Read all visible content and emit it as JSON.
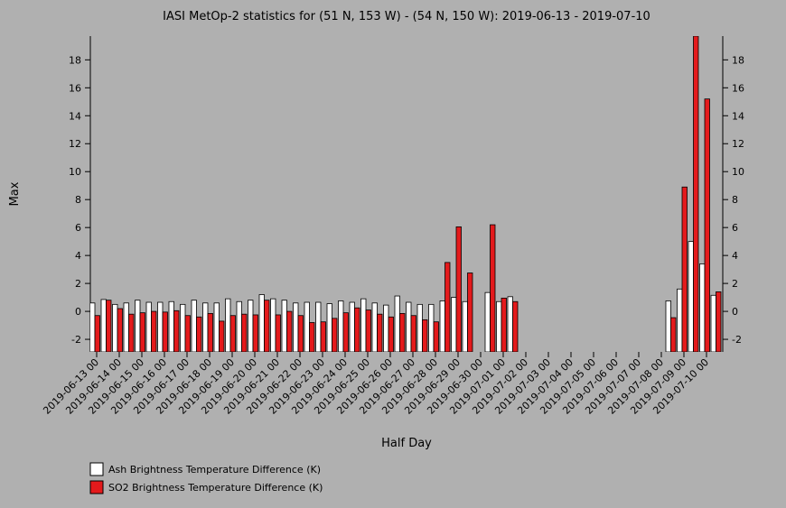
{
  "chart_data": {
    "type": "bar",
    "title": "IASI MetOp-2 statistics for (51 N, 153 W) - (54 N, 150 W): 2019-06-13 - 2019-07-10",
    "x_label": "Half Day",
    "y_label": "Max",
    "categories": [
      "2019-06-13 00",
      null,
      "2019-06-14 00",
      null,
      "2019-06-15 00",
      null,
      "2019-06-16 00",
      null,
      "2019-06-17 00",
      null,
      "2019-06-18 00",
      null,
      "2019-06-19 00",
      null,
      "2019-06-20 00",
      null,
      "2019-06-21 00",
      null,
      "2019-06-22 00",
      null,
      "2019-06-23 00",
      null,
      "2019-06-24 00",
      null,
      "2019-06-25 00",
      null,
      "2019-06-26 00",
      null,
      "2019-06-27 00",
      null,
      "2019-06-28 00",
      null,
      "2019-06-29 00",
      null,
      "2019-06-30 00",
      null,
      "2019-07-01 00",
      null,
      "2019-07-02 00",
      null,
      "2019-07-03 00",
      null,
      "2019-07-04 00",
      null,
      "2019-07-05 00",
      null,
      "2019-07-06 00",
      null,
      "2019-07-07 00",
      null,
      "2019-07-08 00",
      null,
      "2019-07-09 00",
      null,
      "2019-07-10 00",
      null
    ],
    "series": [
      {
        "name": "Ash Brightness Temperature Difference (K)",
        "color": "#ffffff",
        "values": [
          0.6,
          0.85,
          0.5,
          0.6,
          0.8,
          0.65,
          0.65,
          0.7,
          0.5,
          0.8,
          0.6,
          0.6,
          0.9,
          0.7,
          0.8,
          1.2,
          0.9,
          0.8,
          0.6,
          0.65,
          0.65,
          0.55,
          0.75,
          0.65,
          0.9,
          0.6,
          0.45,
          1.1,
          0.65,
          0.5,
          0.5,
          0.75,
          1.0,
          0.7,
          null,
          1.35,
          0.7,
          1.05,
          null,
          null,
          null,
          null,
          null,
          null,
          null,
          null,
          null,
          null,
          null,
          null,
          null,
          0.75,
          1.6,
          5.0,
          3.4,
          1.15
        ]
      },
      {
        "name": "SO2 Brightness Temperature Difference (K)",
        "color": "#e41a1c",
        "values": [
          -0.3,
          0.8,
          0.2,
          -0.2,
          -0.1,
          0.0,
          -0.05,
          0.05,
          -0.3,
          -0.4,
          -0.15,
          -0.7,
          -0.3,
          -0.2,
          -0.25,
          0.8,
          -0.25,
          0.0,
          -0.3,
          -0.8,
          -0.75,
          -0.5,
          -0.1,
          0.25,
          0.1,
          -0.2,
          -0.4,
          -0.15,
          -0.3,
          -0.6,
          -0.75,
          3.5,
          6.05,
          2.75,
          null,
          6.2,
          0.95,
          0.7,
          null,
          null,
          null,
          null,
          null,
          null,
          null,
          null,
          null,
          null,
          null,
          null,
          null,
          -0.45,
          8.9,
          19.7,
          15.2,
          1.4
        ]
      }
    ],
    "ylim": [
      -2.9,
      19.7
    ],
    "yticks": [
      -2,
      0,
      2,
      4,
      6,
      8,
      10,
      12,
      14,
      16,
      18
    ]
  }
}
